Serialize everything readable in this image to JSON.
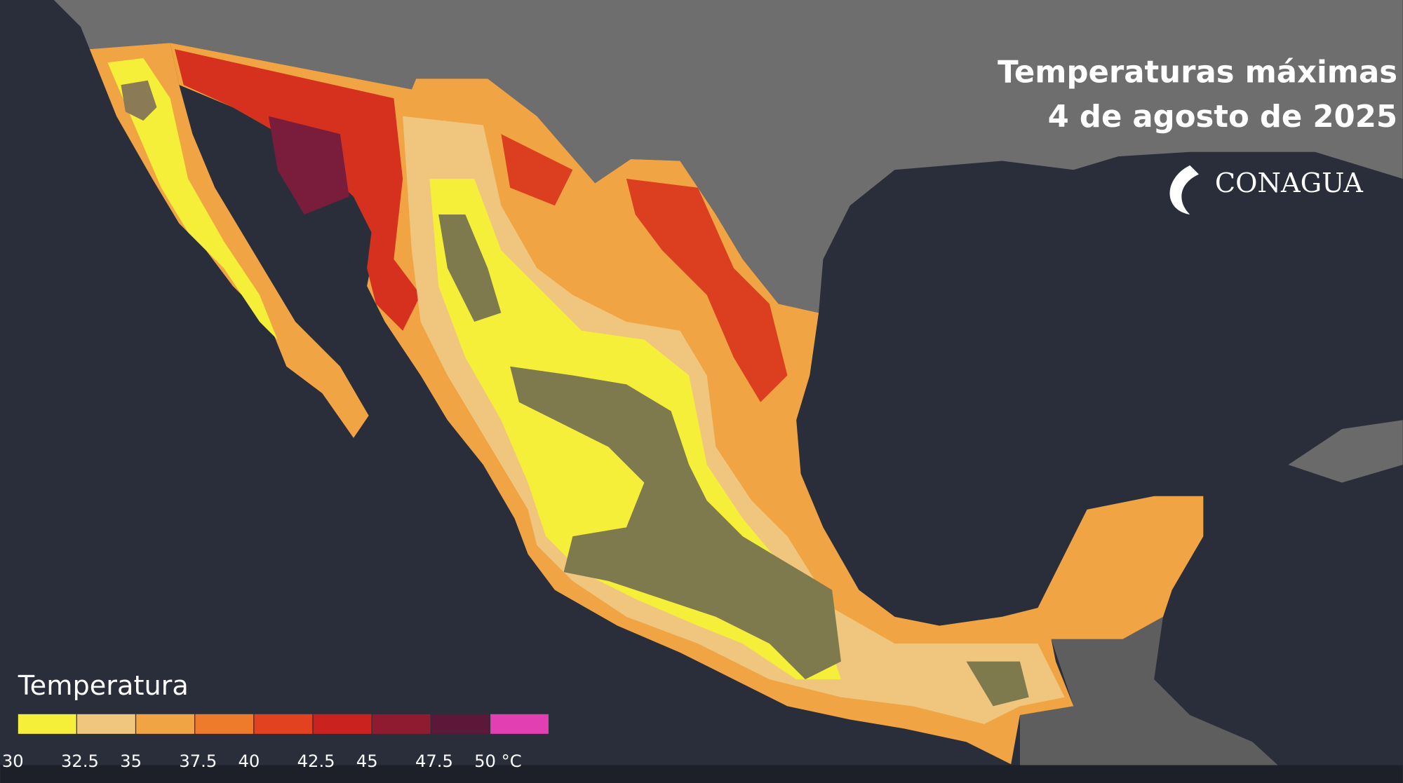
{
  "header": {
    "title": "Temperaturas máximas",
    "date": "4 de agosto de 2025"
  },
  "logo": {
    "name": "CONAGUA"
  },
  "legend": {
    "title": "Temperatura",
    "ticks": [
      30,
      32.5,
      35,
      37.5,
      40,
      42.5,
      45,
      47.5,
      {
        "value": 50,
        "label": "50 °C"
      }
    ],
    "colors": [
      "#f5ef3a",
      "#f0c67e",
      "#f0a444",
      "#ee7a2c",
      "#e2421f",
      "#c9221f",
      "#8f1b30",
      "#5c1838",
      "#e23fb2"
    ]
  }
}
